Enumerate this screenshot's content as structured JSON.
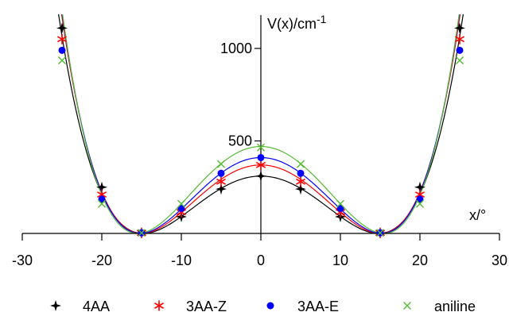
{
  "chart_data": {
    "type": "scatter",
    "xlabel": "x/°",
    "ylabel_main": "V(x)/cm",
    "ylabel_sup": "-1",
    "xlim": [
      -30,
      30
    ],
    "ylim": [
      0,
      1180
    ],
    "xticks": [
      -30,
      -20,
      -10,
      0,
      10,
      20,
      30
    ],
    "xtick_labels": [
      "-30",
      "-20",
      "-10",
      "0",
      "10",
      "20",
      "30"
    ],
    "yticks": [
      500,
      1000
    ],
    "ytick_labels": [
      "500",
      "1000"
    ],
    "legend_position": "bottom",
    "series": [
      {
        "name": "4AA",
        "color": "#000000",
        "marker": "plus-star",
        "points": [
          [
            -25,
            1110
          ],
          [
            -20,
            250
          ],
          [
            -15,
            3
          ],
          [
            -10,
            90
          ],
          [
            -5,
            240
          ],
          [
            0,
            310
          ],
          [
            5,
            240
          ],
          [
            10,
            90
          ],
          [
            15,
            3
          ],
          [
            20,
            250
          ],
          [
            25,
            1110
          ]
        ],
        "curve": {
          "barrier": 310,
          "x0": 14.8
        }
      },
      {
        "name": "3AA-Z",
        "color": "#ff0000",
        "marker": "asterisk",
        "points": [
          [
            -25,
            1050
          ],
          [
            -20,
            210
          ],
          [
            -15,
            3
          ],
          [
            -10,
            115
          ],
          [
            -5,
            280
          ],
          [
            0,
            370
          ],
          [
            5,
            280
          ],
          [
            10,
            115
          ],
          [
            15,
            3
          ],
          [
            20,
            210
          ],
          [
            25,
            1050
          ]
        ],
        "curve": {
          "barrier": 370,
          "x0": 15.0
        }
      },
      {
        "name": "3AA-E",
        "color": "#0000ff",
        "marker": "circle",
        "points": [
          [
            -25,
            990
          ],
          [
            -20,
            185
          ],
          [
            -15,
            3
          ],
          [
            -10,
            135
          ],
          [
            -5,
            325
          ],
          [
            0,
            410
          ],
          [
            5,
            325
          ],
          [
            10,
            135
          ],
          [
            15,
            3
          ],
          [
            20,
            185
          ],
          [
            25,
            990
          ]
        ],
        "curve": {
          "barrier": 410,
          "x0": 15.2
        }
      },
      {
        "name": "aniline",
        "color": "#55bb33",
        "marker": "cross",
        "points": [
          [
            -25,
            935
          ],
          [
            -20,
            160
          ],
          [
            -15,
            3
          ],
          [
            -10,
            160
          ],
          [
            -5,
            375
          ],
          [
            0,
            465
          ],
          [
            5,
            375
          ],
          [
            10,
            160
          ],
          [
            15,
            3
          ],
          [
            20,
            160
          ],
          [
            25,
            935
          ]
        ],
        "curve": {
          "barrier": 470,
          "x0": 15.5
        }
      }
    ]
  }
}
